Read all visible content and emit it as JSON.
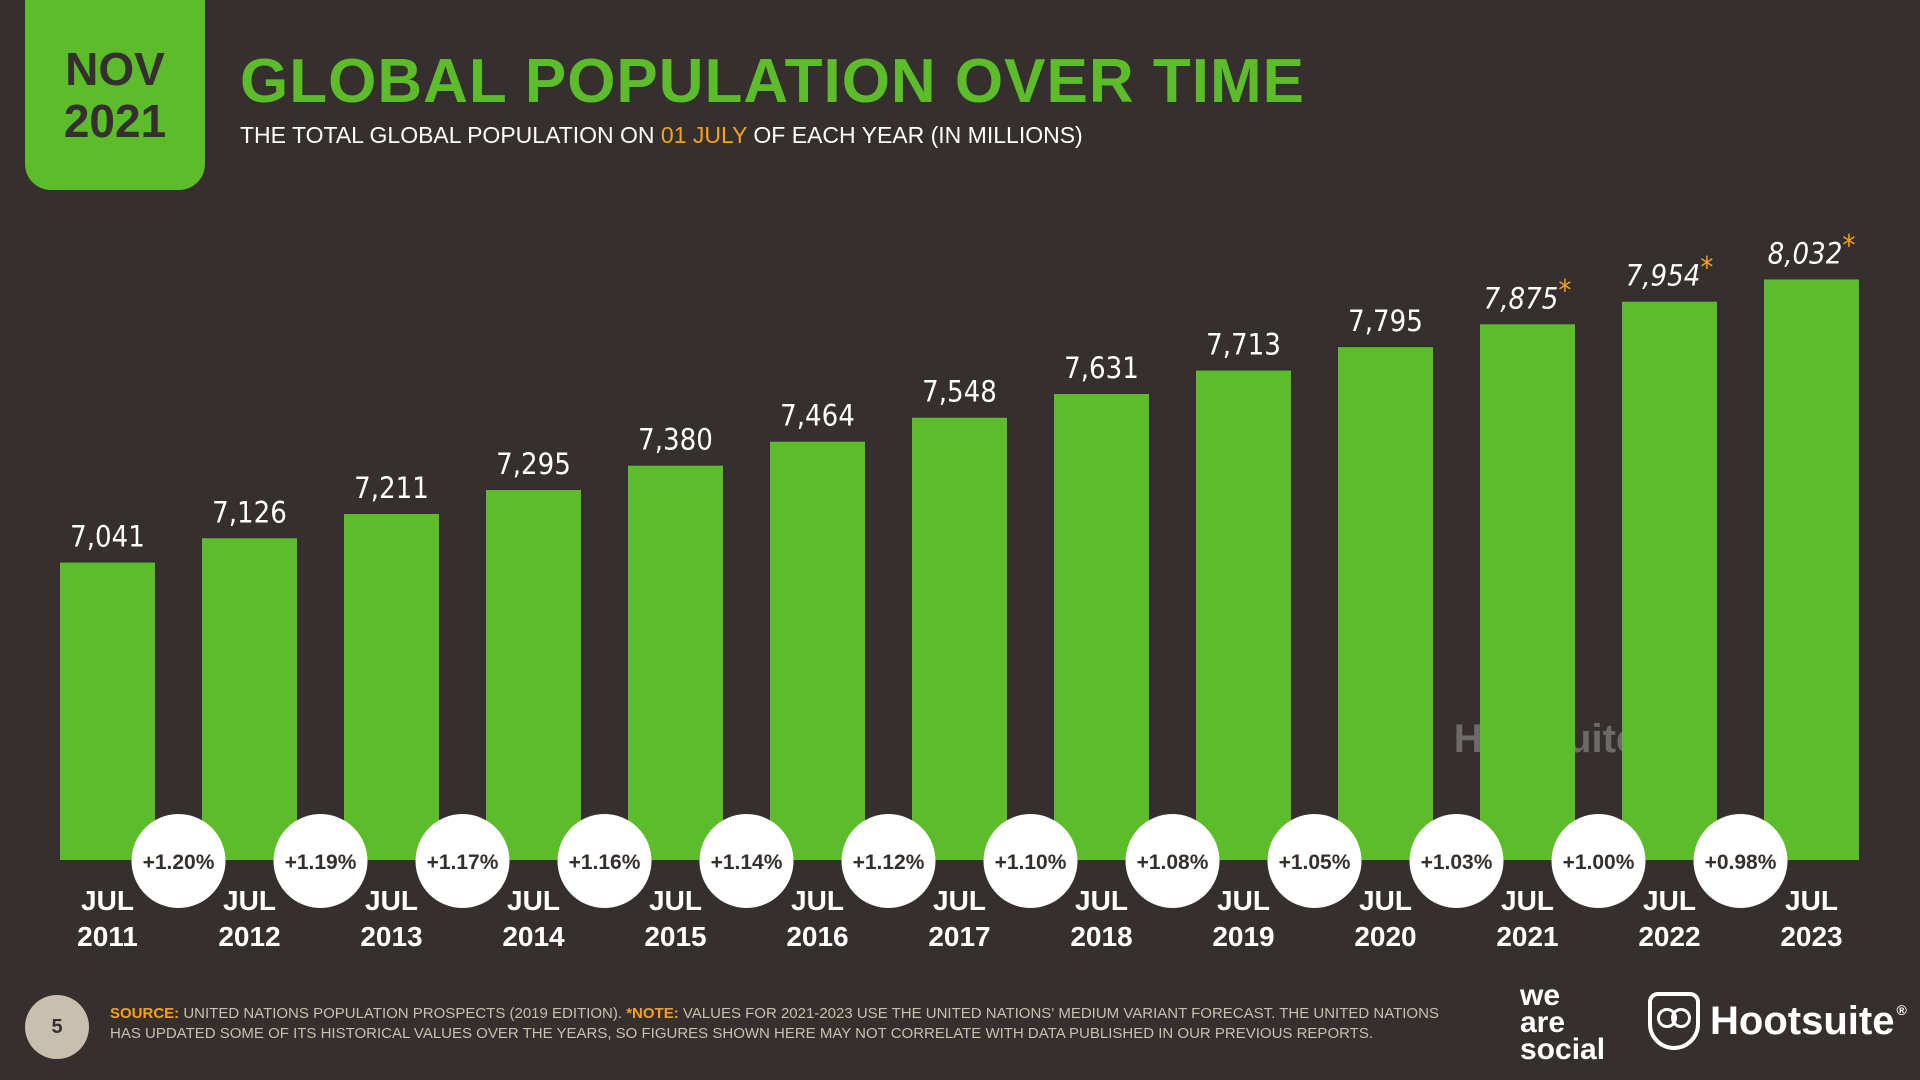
{
  "header": {
    "badge_month": "NOV",
    "badge_year": "2021",
    "title": "GLOBAL POPULATION OVER TIME",
    "subtitle_pre": "THE TOTAL GLOBAL POPULATION ON ",
    "subtitle_highlight": "01 JULY",
    "subtitle_post": " OF EACH YEAR (IN MILLIONS)"
  },
  "colors": {
    "background": "#35302e",
    "bar": "#5cbc2a",
    "accent": "#f6a11a",
    "text": "#ffffff"
  },
  "chart_data": {
    "type": "bar",
    "categories": [
      [
        "JUL",
        "2011"
      ],
      [
        "JUL",
        "2012"
      ],
      [
        "JUL",
        "2013"
      ],
      [
        "JUL",
        "2014"
      ],
      [
        "JUL",
        "2015"
      ],
      [
        "JUL",
        "2016"
      ],
      [
        "JUL",
        "2017"
      ],
      [
        "JUL",
        "2018"
      ],
      [
        "JUL",
        "2019"
      ],
      [
        "JUL",
        "2020"
      ],
      [
        "JUL",
        "2021"
      ],
      [
        "JUL",
        "2022"
      ],
      [
        "JUL",
        "2023"
      ]
    ],
    "values": [
      7041,
      7126,
      7211,
      7295,
      7380,
      7464,
      7548,
      7631,
      7713,
      7795,
      7875,
      7954,
      8032
    ],
    "value_labels": [
      "7,041",
      "7,126",
      "7,211",
      "7,295",
      "7,380",
      "7,464",
      "7,548",
      "7,631",
      "7,713",
      "7,795",
      "7,875",
      "7,954",
      "8,032"
    ],
    "forecast_flags": [
      false,
      false,
      false,
      false,
      false,
      false,
      false,
      false,
      false,
      false,
      true,
      true,
      true
    ],
    "forecast_marker": "*",
    "growth_labels": [
      "+1.20%",
      "+1.19%",
      "+1.17%",
      "+1.16%",
      "+1.14%",
      "+1.12%",
      "+1.10%",
      "+1.08%",
      "+1.05%",
      "+1.03%",
      "+1.00%",
      "+0.98%"
    ],
    "ylim": [
      6000,
      8100
    ]
  },
  "footer": {
    "page_number": "5",
    "source_label": "SOURCE:",
    "source_text": " UNITED NATIONS POPULATION PROSPECTS (2019 EDITION). ",
    "note_label": "*NOTE:",
    "note_text": " VALUES FOR 2021-2023 USE THE UNITED NATIONS' MEDIUM VARIANT FORECAST. THE UNITED NATIONS HAS UPDATED SOME OF ITS HISTORICAL VALUES OVER THE YEARS, SO FIGURES SHOWN HERE MAY NOT CORRELATE WITH DATA PUBLISHED IN OUR PREVIOUS REPORTS."
  },
  "logos": {
    "we_are_social": [
      "we",
      "are",
      "social"
    ],
    "hootsuite": "Hootsuite",
    "hootsuite_mark": "®"
  }
}
